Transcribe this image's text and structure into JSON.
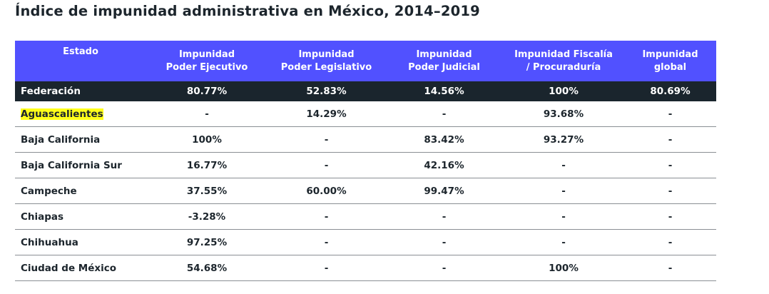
{
  "title": "Índice de impunidad administrativa en México, 2014–2019",
  "colors": {
    "header": "#5151ff",
    "federation_row": "#1a252d",
    "highlight": "#ffff1a"
  },
  "table": {
    "headers": [
      [
        "Estado",
        ""
      ],
      [
        "Impunidad",
        "Poder Ejecutivo"
      ],
      [
        "Impunidad",
        "Poder Legislativo"
      ],
      [
        "Impunidad",
        "Poder Judicial"
      ],
      [
        "Impunidad Fiscalía",
        "/ Procuraduría"
      ],
      [
        "Impunidad",
        "global"
      ]
    ],
    "rows": [
      [
        "Federación",
        "80.77%",
        "52.83%",
        "14.56%",
        "100%",
        "80.69%"
      ],
      [
        "Aguascalientes",
        "-",
        "14.29%",
        "-",
        "93.68%",
        "-"
      ],
      [
        "Baja California",
        "100%",
        "-",
        "83.42%",
        "93.27%",
        "-"
      ],
      [
        "Baja California Sur",
        "16.77%",
        "-",
        "42.16%",
        "-",
        "-"
      ],
      [
        "Campeche",
        "37.55%",
        "60.00%",
        "99.47%",
        "-",
        "-"
      ],
      [
        "Chiapas",
        "-3.28%",
        "-",
        "-",
        "-",
        "-"
      ],
      [
        "Chihuahua",
        "97.25%",
        "-",
        "-",
        "-",
        "-"
      ],
      [
        "Ciudad de México",
        "54.68%",
        "-",
        "-",
        "100%",
        "-"
      ]
    ]
  }
}
